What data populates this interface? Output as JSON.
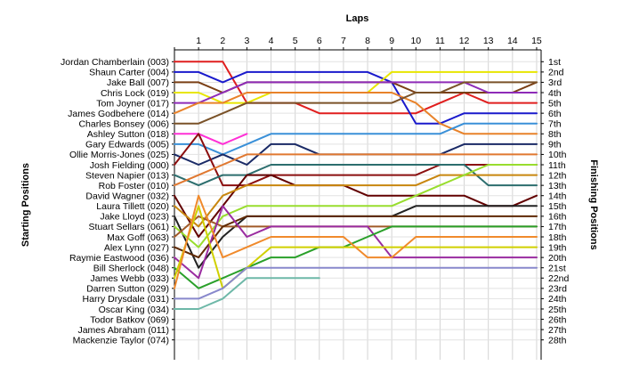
{
  "chart_data": {
    "type": "line",
    "title": "Laps",
    "ylabel_left": "Starting Positions",
    "ylabel_right": "Finishing Positions",
    "laps": [
      1,
      2,
      3,
      4,
      5,
      6,
      7,
      8,
      9,
      10,
      11,
      12,
      13,
      14,
      15
    ],
    "finishing_labels": [
      "1st",
      "2nd",
      "3rd",
      "4th",
      "5th",
      "6th",
      "7th",
      "8th",
      "9th",
      "10th",
      "11th",
      "12th",
      "13th",
      "14th",
      "15th",
      "16th",
      "17th",
      "18th",
      "19th",
      "20th",
      "21st",
      "22nd",
      "23rd",
      "24th",
      "25th",
      "26th",
      "27th",
      "28th"
    ],
    "grid": true,
    "series": [
      {
        "name": "Jordan Chamberlain (003)",
        "color": "#e01e1e",
        "positions": [
          1,
          1,
          1,
          5,
          5,
          5,
          6,
          6,
          6,
          6,
          6,
          5,
          4,
          5,
          5,
          5
        ]
      },
      {
        "name": "Shaun Carter (004)",
        "color": "#1a1acc",
        "positions": [
          2,
          2,
          3,
          2,
          2,
          2,
          2,
          2,
          2,
          3,
          7,
          7,
          6,
          6,
          6,
          6
        ]
      },
      {
        "name": "Jake Ball (007)",
        "color": "#7a3f14",
        "positions": [
          3,
          3,
          4,
          3,
          3,
          3,
          3,
          3,
          3,
          3,
          4,
          4,
          4,
          4,
          4,
          3
        ]
      },
      {
        "name": "Chris Lock (019)",
        "color": "#e8e600",
        "positions": [
          4,
          4,
          5,
          5,
          4,
          4,
          4,
          4,
          4,
          2,
          2,
          2,
          2,
          2,
          2,
          2
        ]
      },
      {
        "name": "Tom Joyner (017)",
        "color": "#8e2bb8",
        "positions": [
          5,
          5,
          4,
          3,
          3,
          3,
          3,
          3,
          3,
          3,
          3,
          3,
          3,
          4,
          4,
          4
        ]
      },
      {
        "name": "James Godbehere (014)",
        "color": "#e8822a",
        "positions": [
          6,
          5,
          5,
          4,
          4,
          4,
          4,
          4,
          4,
          4,
          5,
          7,
          8,
          8,
          8,
          8
        ]
      },
      {
        "name": "Charles Bonsey (006)",
        "color": "#7a5228",
        "positions": [
          7,
          7,
          6,
          5,
          5,
          5,
          5,
          5,
          5,
          5,
          4,
          4,
          3,
          3,
          3,
          3
        ]
      },
      {
        "name": "Ashley Sutton (018)",
        "color": "#ff30d6",
        "positions": [
          8,
          8,
          9,
          8
        ]
      },
      {
        "name": "Gary Edwards (005)",
        "color": "#3a90d8",
        "positions": [
          9,
          9,
          10,
          9,
          8,
          8,
          8,
          8,
          8,
          8,
          8,
          8,
          7,
          7,
          7,
          7
        ]
      },
      {
        "name": "Ollie Morris-Jones (025)",
        "color": "#1a2a66",
        "positions": [
          10,
          11,
          10,
          11,
          9,
          9,
          10,
          10,
          10,
          10,
          10,
          10,
          9,
          9,
          9,
          9
        ]
      },
      {
        "name": "Josh Fielding (000)",
        "color": "#8b0f0f",
        "positions": [
          11,
          8,
          13,
          13,
          12,
          12,
          12,
          12,
          12,
          12,
          12,
          11,
          11,
          11,
          11,
          11
        ]
      },
      {
        "name": "Steven Napier (013)",
        "color": "#2c6e6e",
        "positions": [
          12,
          13,
          12,
          12,
          11,
          11,
          11,
          11,
          11,
          11,
          11,
          11,
          11,
          13,
          13,
          13
        ]
      },
      {
        "name": "Rob Foster (010)",
        "color": "#e07830",
        "positions": [
          13,
          12,
          11,
          10,
          10,
          10,
          10,
          10,
          10,
          10,
          10,
          10,
          10,
          10,
          10,
          10
        ]
      },
      {
        "name": "David Wagner (032)",
        "color": "#620000",
        "positions": [
          14,
          18,
          15,
          12,
          12,
          13,
          13,
          13,
          14,
          14,
          14,
          14,
          14,
          15,
          15,
          14
        ]
      },
      {
        "name": "Laura Tillett (020)",
        "color": "#c8860e",
        "positions": [
          15,
          17,
          14,
          13,
          13,
          13,
          13,
          13,
          13,
          13,
          13,
          12,
          12,
          12,
          12,
          12
        ]
      },
      {
        "name": "Jake Lloyd (023)",
        "color": "#222222",
        "positions": [
          16,
          21,
          18,
          16,
          16,
          16,
          16,
          16,
          16,
          16,
          15,
          15,
          15,
          15,
          15,
          15
        ]
      },
      {
        "name": "Stuart Sellars (061)",
        "color": "#98dd2e",
        "positions": [
          17,
          19,
          16,
          15,
          15,
          15,
          15,
          15,
          15,
          15,
          14,
          13,
          12,
          11,
          11,
          11
        ]
      },
      {
        "name": "Max Goff (063)",
        "color": "#a05a28",
        "positions": [
          18,
          16,
          17,
          17,
          17,
          17,
          17,
          17,
          17,
          17,
          17,
          17,
          17,
          17,
          17,
          17
        ]
      },
      {
        "name": "Alex Lynn (027)",
        "color": "#5e2800",
        "positions": [
          19,
          20,
          17,
          16,
          16,
          16,
          16,
          16,
          16,
          16,
          16,
          16,
          16,
          16,
          16,
          16
        ]
      },
      {
        "name": "Raymie Eastwood (036)",
        "color": "#9a2ca0",
        "positions": [
          20,
          22,
          15,
          18,
          17,
          17,
          17,
          17,
          17,
          20,
          20,
          20,
          20,
          20,
          20,
          20
        ]
      },
      {
        "name": "Bill Sherlock (048)",
        "color": "#2aa02a",
        "positions": [
          21,
          23,
          22,
          21,
          20,
          20,
          19,
          19,
          18,
          17,
          17,
          17,
          17,
          17,
          17,
          17
        ]
      },
      {
        "name": "James Webb (033)",
        "color": "#d0d000",
        "positions": [
          22,
          15,
          23,
          21,
          19,
          19,
          19,
          19,
          19,
          19,
          19,
          19,
          19,
          19,
          19,
          19
        ]
      },
      {
        "name": "Darren Sutton (029)",
        "color": "#f08a2c",
        "positions": [
          23,
          14,
          20,
          19,
          18,
          18,
          18,
          18,
          20,
          20,
          18,
          18,
          18,
          18,
          18,
          18
        ]
      },
      {
        "name": "Harry Drysdale (031)",
        "color": "#8888cc",
        "positions": [
          24,
          24,
          23,
          21,
          21,
          21,
          21,
          21,
          21,
          21,
          21,
          21,
          21,
          21,
          21,
          21
        ]
      },
      {
        "name": "Oscar King (034)",
        "color": "#6eb8a8",
        "positions": [
          25,
          25,
          24,
          22,
          22,
          22,
          22
        ]
      },
      {
        "name": "Todor Batkov (069)",
        "color": "#555555",
        "positions": [
          26
        ]
      },
      {
        "name": "James Abraham (011)",
        "color": "#555555",
        "positions": [
          27
        ]
      },
      {
        "name": "Mackenzie Taylor (074)",
        "color": "#555555",
        "positions": [
          28
        ]
      }
    ]
  }
}
